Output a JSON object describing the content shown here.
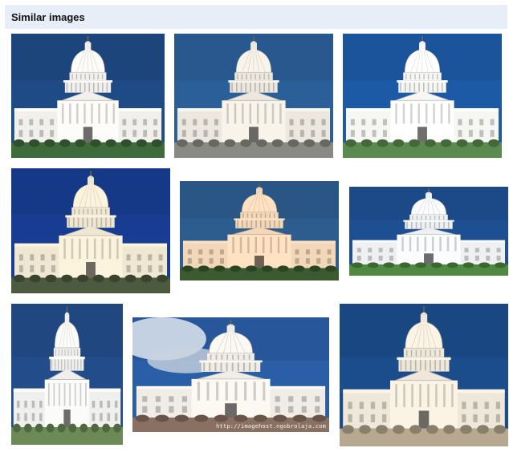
{
  "section": {
    "title": "Similar images"
  },
  "images": [
    {
      "subject": "capitol-building",
      "sky": "#1e4a86",
      "building": "#f2f0ec",
      "ground": "#3d6b3a"
    },
    {
      "subject": "capitol-building",
      "sky": "#2b5f98",
      "building": "#ece8df",
      "ground": "#8a8a84"
    },
    {
      "subject": "capitol-building",
      "sky": "#1d5aa6",
      "building": "#f6f6f3",
      "ground": "#5a8a4d"
    },
    {
      "subject": "capitol-building",
      "sky": "#173c92",
      "building": "#f0e7d2",
      "ground": "#4c5a40"
    },
    {
      "subject": "capitol-building",
      "sky": "#2d5d8f",
      "building": "#f2d7b8",
      "ground": "#3b5a30"
    },
    {
      "subject": "capitol-building",
      "sky": "#1f4f93",
      "building": "#eef0f2",
      "ground": "#4f8a40"
    },
    {
      "subject": "capitol-building",
      "sky": "#224d8a",
      "building": "#efefed",
      "ground": "#6b8a55"
    },
    {
      "subject": "capitol-building",
      "sky": "#2a5ea6",
      "building": "#f0ece6",
      "ground": "#8a7060",
      "clouds": true,
      "watermark": "http://imagehost.ngobrolaja.com"
    },
    {
      "subject": "capitol-building",
      "sky": "#1b4c8c",
      "building": "#efe8da",
      "ground": "#b8a890"
    }
  ]
}
